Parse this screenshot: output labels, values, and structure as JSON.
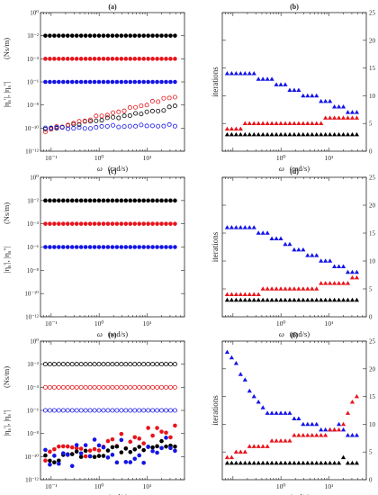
{
  "figure": {
    "left_ylabel_html": [
      "|η",
      "s",
      "'|, |η",
      "s",
      "''|"
    ],
    "left_ylabel_unit": "(Ns/m)",
    "right_ylabel": "iterations",
    "xlabel_symbol": "ω",
    "xlabel_unit": "(rad/s)",
    "colors": {
      "black": "#000000",
      "red": "#e8141b",
      "blue": "#1414e6",
      "axis": "#262626"
    }
  },
  "chart_data": [
    {
      "panel": "(a)",
      "type": "scatter",
      "xscale": "log",
      "yscale": "log",
      "xlim": [
        0.06,
        60
      ],
      "ylim": [
        1e-12,
        1
      ],
      "xticks": [
        0.1,
        1,
        10
      ],
      "xtick_labels": [
        "10⁻¹",
        "10⁰",
        "10¹"
      ],
      "yticks": [
        1e-12,
        1e-10,
        1e-08,
        1e-06,
        0.0001,
        0.01,
        1
      ],
      "ytick_labels": [
        "10⁻¹²",
        "10⁻¹⁰",
        "10⁻⁸",
        "10⁻⁶",
        "10⁻⁴",
        "10⁻²",
        "10⁰"
      ],
      "series": [
        {
          "color": "black",
          "marker": "filled-circle",
          "const": 0.01
        },
        {
          "color": "red",
          "marker": "filled-circle",
          "const": 0.0001
        },
        {
          "color": "blue",
          "marker": "filled-circle",
          "const": 1e-06
        },
        {
          "color": "black",
          "marker": "open-circle",
          "fit": [
            1e-10,
            0.7
          ]
        },
        {
          "color": "red",
          "marker": "open-circle",
          "fit": [
            8e-11,
            1.1
          ]
        },
        {
          "color": "blue",
          "marker": "open-circle",
          "fit": [
            1e-10,
            0.1
          ]
        }
      ]
    },
    {
      "panel": "(b)",
      "type": "scatter",
      "xscale": "log",
      "yscale": "linear",
      "xlim": [
        0.06,
        60
      ],
      "ylim": [
        0,
        25
      ],
      "xticks": [
        1,
        10
      ],
      "xtick_labels": [
        "10⁰",
        "10¹"
      ],
      "yticks": [
        0,
        5,
        10,
        15,
        20,
        25
      ],
      "ytick_labels": [
        "0",
        "5",
        "10",
        "15",
        "20",
        "25"
      ],
      "series": [
        {
          "color": "blue",
          "marker": "filled-triangle",
          "values": [
            14,
            14,
            14,
            14,
            14,
            14,
            14,
            13,
            13,
            13,
            13,
            12,
            12,
            12,
            11,
            11,
            11,
            10,
            10,
            10,
            10,
            9,
            9,
            9,
            8,
            8,
            8,
            7,
            7,
            7
          ]
        },
        {
          "color": "red",
          "marker": "filled-triangle",
          "values": [
            4,
            4,
            4,
            4,
            5,
            5,
            5,
            5,
            5,
            5,
            5,
            5,
            5,
            5,
            5,
            5,
            5,
            5,
            5,
            5,
            5,
            5,
            6,
            6,
            6,
            6,
            6,
            6,
            6,
            6
          ]
        },
        {
          "color": "black",
          "marker": "filled-triangle",
          "values": [
            3,
            3,
            3,
            3,
            3,
            3,
            3,
            3,
            3,
            3,
            3,
            3,
            3,
            3,
            3,
            3,
            3,
            3,
            3,
            3,
            3,
            3,
            3,
            3,
            3,
            3,
            3,
            3,
            3,
            3
          ]
        }
      ]
    },
    {
      "panel": "(c)",
      "type": "scatter",
      "xscale": "log",
      "yscale": "log",
      "xlim": [
        0.06,
        60
      ],
      "ylim": [
        1e-12,
        1
      ],
      "xticks": [
        0.1,
        1,
        10
      ],
      "xtick_labels": [
        "10⁻¹",
        "10⁰",
        "10¹"
      ],
      "yticks": [
        1e-12,
        1e-10,
        1e-08,
        1e-06,
        0.0001,
        0.01,
        1
      ],
      "ytick_labels": [
        "10⁻¹²",
        "10⁻¹⁰",
        "10⁻⁸",
        "10⁻⁶",
        "10⁻⁴",
        "10⁻²",
        "10⁰"
      ],
      "series": [
        {
          "color": "black",
          "marker": "filled-circle",
          "const": 0.01
        },
        {
          "color": "red",
          "marker": "filled-circle",
          "const": 0.0001
        },
        {
          "color": "blue",
          "marker": "filled-circle",
          "const": 1e-06
        }
      ]
    },
    {
      "panel": "(d)",
      "type": "scatter",
      "xscale": "log",
      "yscale": "linear",
      "xlim": [
        0.06,
        60
      ],
      "ylim": [
        0,
        25
      ],
      "xticks": [
        1,
        10
      ],
      "xtick_labels": [
        "10⁰",
        "10¹"
      ],
      "yticks": [
        0,
        5,
        10,
        15,
        20,
        25
      ],
      "ytick_labels": [
        "0",
        "5",
        "10",
        "15",
        "20",
        "25"
      ],
      "series": [
        {
          "color": "blue",
          "marker": "filled-triangle",
          "values": [
            16,
            16,
            16,
            16,
            16,
            16,
            16,
            15,
            15,
            15,
            14,
            14,
            14,
            13,
            13,
            12,
            12,
            12,
            11,
            11,
            11,
            10,
            10,
            10,
            9,
            9,
            9,
            8,
            8,
            8
          ]
        },
        {
          "color": "red",
          "marker": "filled-triangle",
          "values": [
            4,
            4,
            4,
            4,
            4,
            4,
            4,
            4,
            5,
            5,
            5,
            5,
            5,
            5,
            5,
            5,
            5,
            5,
            5,
            5,
            5,
            6,
            6,
            6,
            6,
            6,
            6,
            6,
            7,
            7
          ]
        },
        {
          "color": "black",
          "marker": "filled-triangle",
          "values": [
            3,
            3,
            3,
            3,
            3,
            3,
            3,
            3,
            3,
            3,
            3,
            3,
            3,
            3,
            3,
            3,
            3,
            3,
            3,
            3,
            3,
            3,
            3,
            3,
            3,
            3,
            3,
            3,
            3,
            3
          ]
        }
      ]
    },
    {
      "panel": "(e)",
      "type": "scatter",
      "xscale": "log",
      "yscale": "log",
      "xlim": [
        0.06,
        60
      ],
      "ylim": [
        1e-12,
        1
      ],
      "xticks": [
        0.1,
        1,
        10
      ],
      "xtick_labels": [
        "10⁻¹",
        "10⁰",
        "10¹"
      ],
      "yticks": [
        1e-12,
        1e-10,
        1e-08,
        1e-06,
        0.0001,
        0.01,
        1
      ],
      "ytick_labels": [
        "10⁻¹²",
        "10⁻¹⁰",
        "10⁻⁸",
        "10⁻⁶",
        "10⁻⁴",
        "10⁻²",
        "10⁰"
      ],
      "series": [
        {
          "color": "black",
          "marker": "open-circle",
          "const": 0.01
        },
        {
          "color": "red",
          "marker": "open-circle",
          "const": 0.0001
        },
        {
          "color": "blue",
          "marker": "open-circle",
          "const": 1e-06
        },
        {
          "color": "red",
          "marker": "filled-circle",
          "fit": [
            1.2e-10,
            0.85
          ],
          "scatter": 0.35
        },
        {
          "color": "black",
          "marker": "filled-circle",
          "fit": [
            7e-11,
            0.55
          ],
          "scatter": 0.2
        },
        {
          "color": "blue",
          "marker": "filled-circle",
          "fit": [
            2e-10,
            0.15
          ],
          "scatter": 0.6
        }
      ]
    },
    {
      "panel": "(f)",
      "type": "scatter",
      "xscale": "log",
      "yscale": "linear",
      "xlim": [
        0.06,
        60
      ],
      "ylim": [
        0,
        25
      ],
      "xticks": [
        1,
        10
      ],
      "xtick_labels": [
        "10⁰",
        "10¹"
      ],
      "yticks": [
        0,
        5,
        10,
        15,
        20,
        25
      ],
      "ytick_labels": [
        "0",
        "5",
        "10",
        "15",
        "20",
        "25"
      ],
      "series": [
        {
          "color": "blue",
          "marker": "filled-triangle",
          "values": [
            23,
            22,
            21,
            19,
            18,
            16,
            15,
            14,
            13,
            12,
            12,
            12,
            12,
            12,
            12,
            11,
            11,
            10,
            10,
            10,
            10,
            9,
            9,
            9,
            9,
            10,
            9,
            8,
            8,
            8
          ]
        },
        {
          "color": "red",
          "marker": "filled-triangle",
          "values": [
            4,
            4,
            5,
            5,
            5,
            6,
            6,
            6,
            6,
            6,
            7,
            7,
            7,
            7,
            7,
            8,
            8,
            8,
            8,
            8,
            8,
            8,
            8,
            9,
            9,
            9,
            10,
            12,
            14,
            15
          ]
        },
        {
          "color": "black",
          "marker": "filled-triangle",
          "values": [
            3,
            3,
            3,
            3,
            3,
            3,
            3,
            3,
            3,
            3,
            3,
            3,
            3,
            3,
            3,
            3,
            3,
            3,
            3,
            3,
            3,
            3,
            3,
            3,
            3,
            3,
            4,
            3,
            3,
            3
          ]
        }
      ]
    }
  ]
}
